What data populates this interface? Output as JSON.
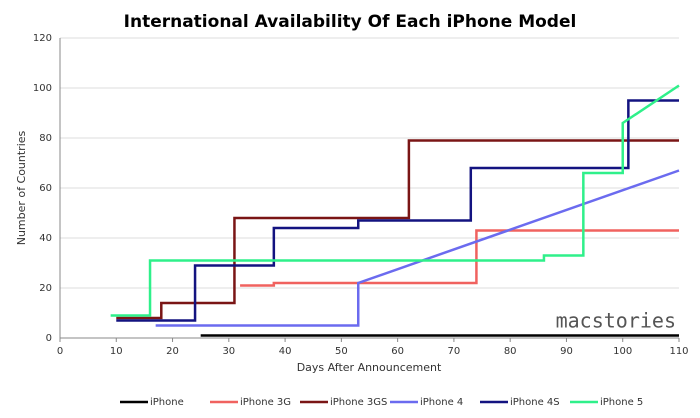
{
  "chart_data": {
    "type": "line",
    "title": "International Availability Of Each iPhone Model",
    "x_label": "Days After Announcement",
    "y_label": "Number of Countries",
    "watermark": "macstories",
    "xlim": [
      0,
      110
    ],
    "xticks": [
      0,
      10,
      20,
      30,
      40,
      50,
      60,
      70,
      80,
      90,
      100,
      110
    ],
    "ylim": [
      0,
      120
    ],
    "yticks": [
      0,
      20,
      40,
      60,
      80,
      100,
      120
    ],
    "grid": true,
    "legend": "bottom",
    "series": [
      {
        "name": "iPhone",
        "color": "#000000",
        "x": [
          25,
          110
        ],
        "values": [
          1,
          1
        ]
      },
      {
        "name": "iPhone 3G",
        "color": "#f0625f",
        "x": [
          32,
          38,
          38,
          74,
          74,
          110
        ],
        "values": [
          21,
          21,
          22,
          22,
          43,
          43
        ]
      },
      {
        "name": "iPhone 3GS",
        "color": "#7a1515",
        "x": [
          10,
          18,
          18,
          31,
          31,
          62,
          62,
          110
        ],
        "values": [
          8,
          8,
          14,
          14,
          48,
          48,
          79,
          79
        ]
      },
      {
        "name": "iPhone 4",
        "color": "#6b6bef",
        "x": [
          17,
          53,
          53,
          110
        ],
        "values": [
          5,
          5,
          22,
          67
        ]
      },
      {
        "name": "iPhone 4S",
        "color": "#131380",
        "x": [
          10,
          24,
          24,
          38,
          38,
          53,
          53,
          73,
          73,
          101,
          101,
          110
        ],
        "values": [
          7,
          7,
          29,
          29,
          44,
          44,
          47,
          47,
          68,
          68,
          95,
          95
        ]
      },
      {
        "name": "iPhone 5",
        "color": "#2ff08a",
        "x": [
          9,
          16,
          16,
          86,
          86,
          93,
          93,
          100,
          100,
          110
        ],
        "values": [
          9,
          9,
          31,
          31,
          33,
          33,
          66,
          66,
          86,
          101
        ]
      }
    ]
  }
}
